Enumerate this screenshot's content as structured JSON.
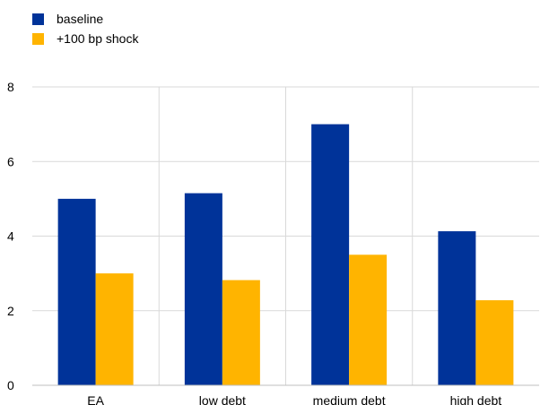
{
  "chart_data": {
    "type": "bar",
    "categories": [
      "EA",
      "low debt",
      "medium debt",
      "high debt"
    ],
    "series": [
      {
        "name": "baseline",
        "color": "#003399",
        "values": [
          5.0,
          5.15,
          7.0,
          4.13
        ]
      },
      {
        "name": "+100 bp shock",
        "color": "#FFB400",
        "values": [
          3.0,
          2.82,
          3.5,
          2.28
        ]
      }
    ],
    "ylim": [
      0,
      8
    ],
    "yticks": [
      0,
      2,
      4,
      6,
      8
    ],
    "grid": true,
    "legend": "top-left",
    "title": "",
    "xlabel": "",
    "ylabel": ""
  }
}
